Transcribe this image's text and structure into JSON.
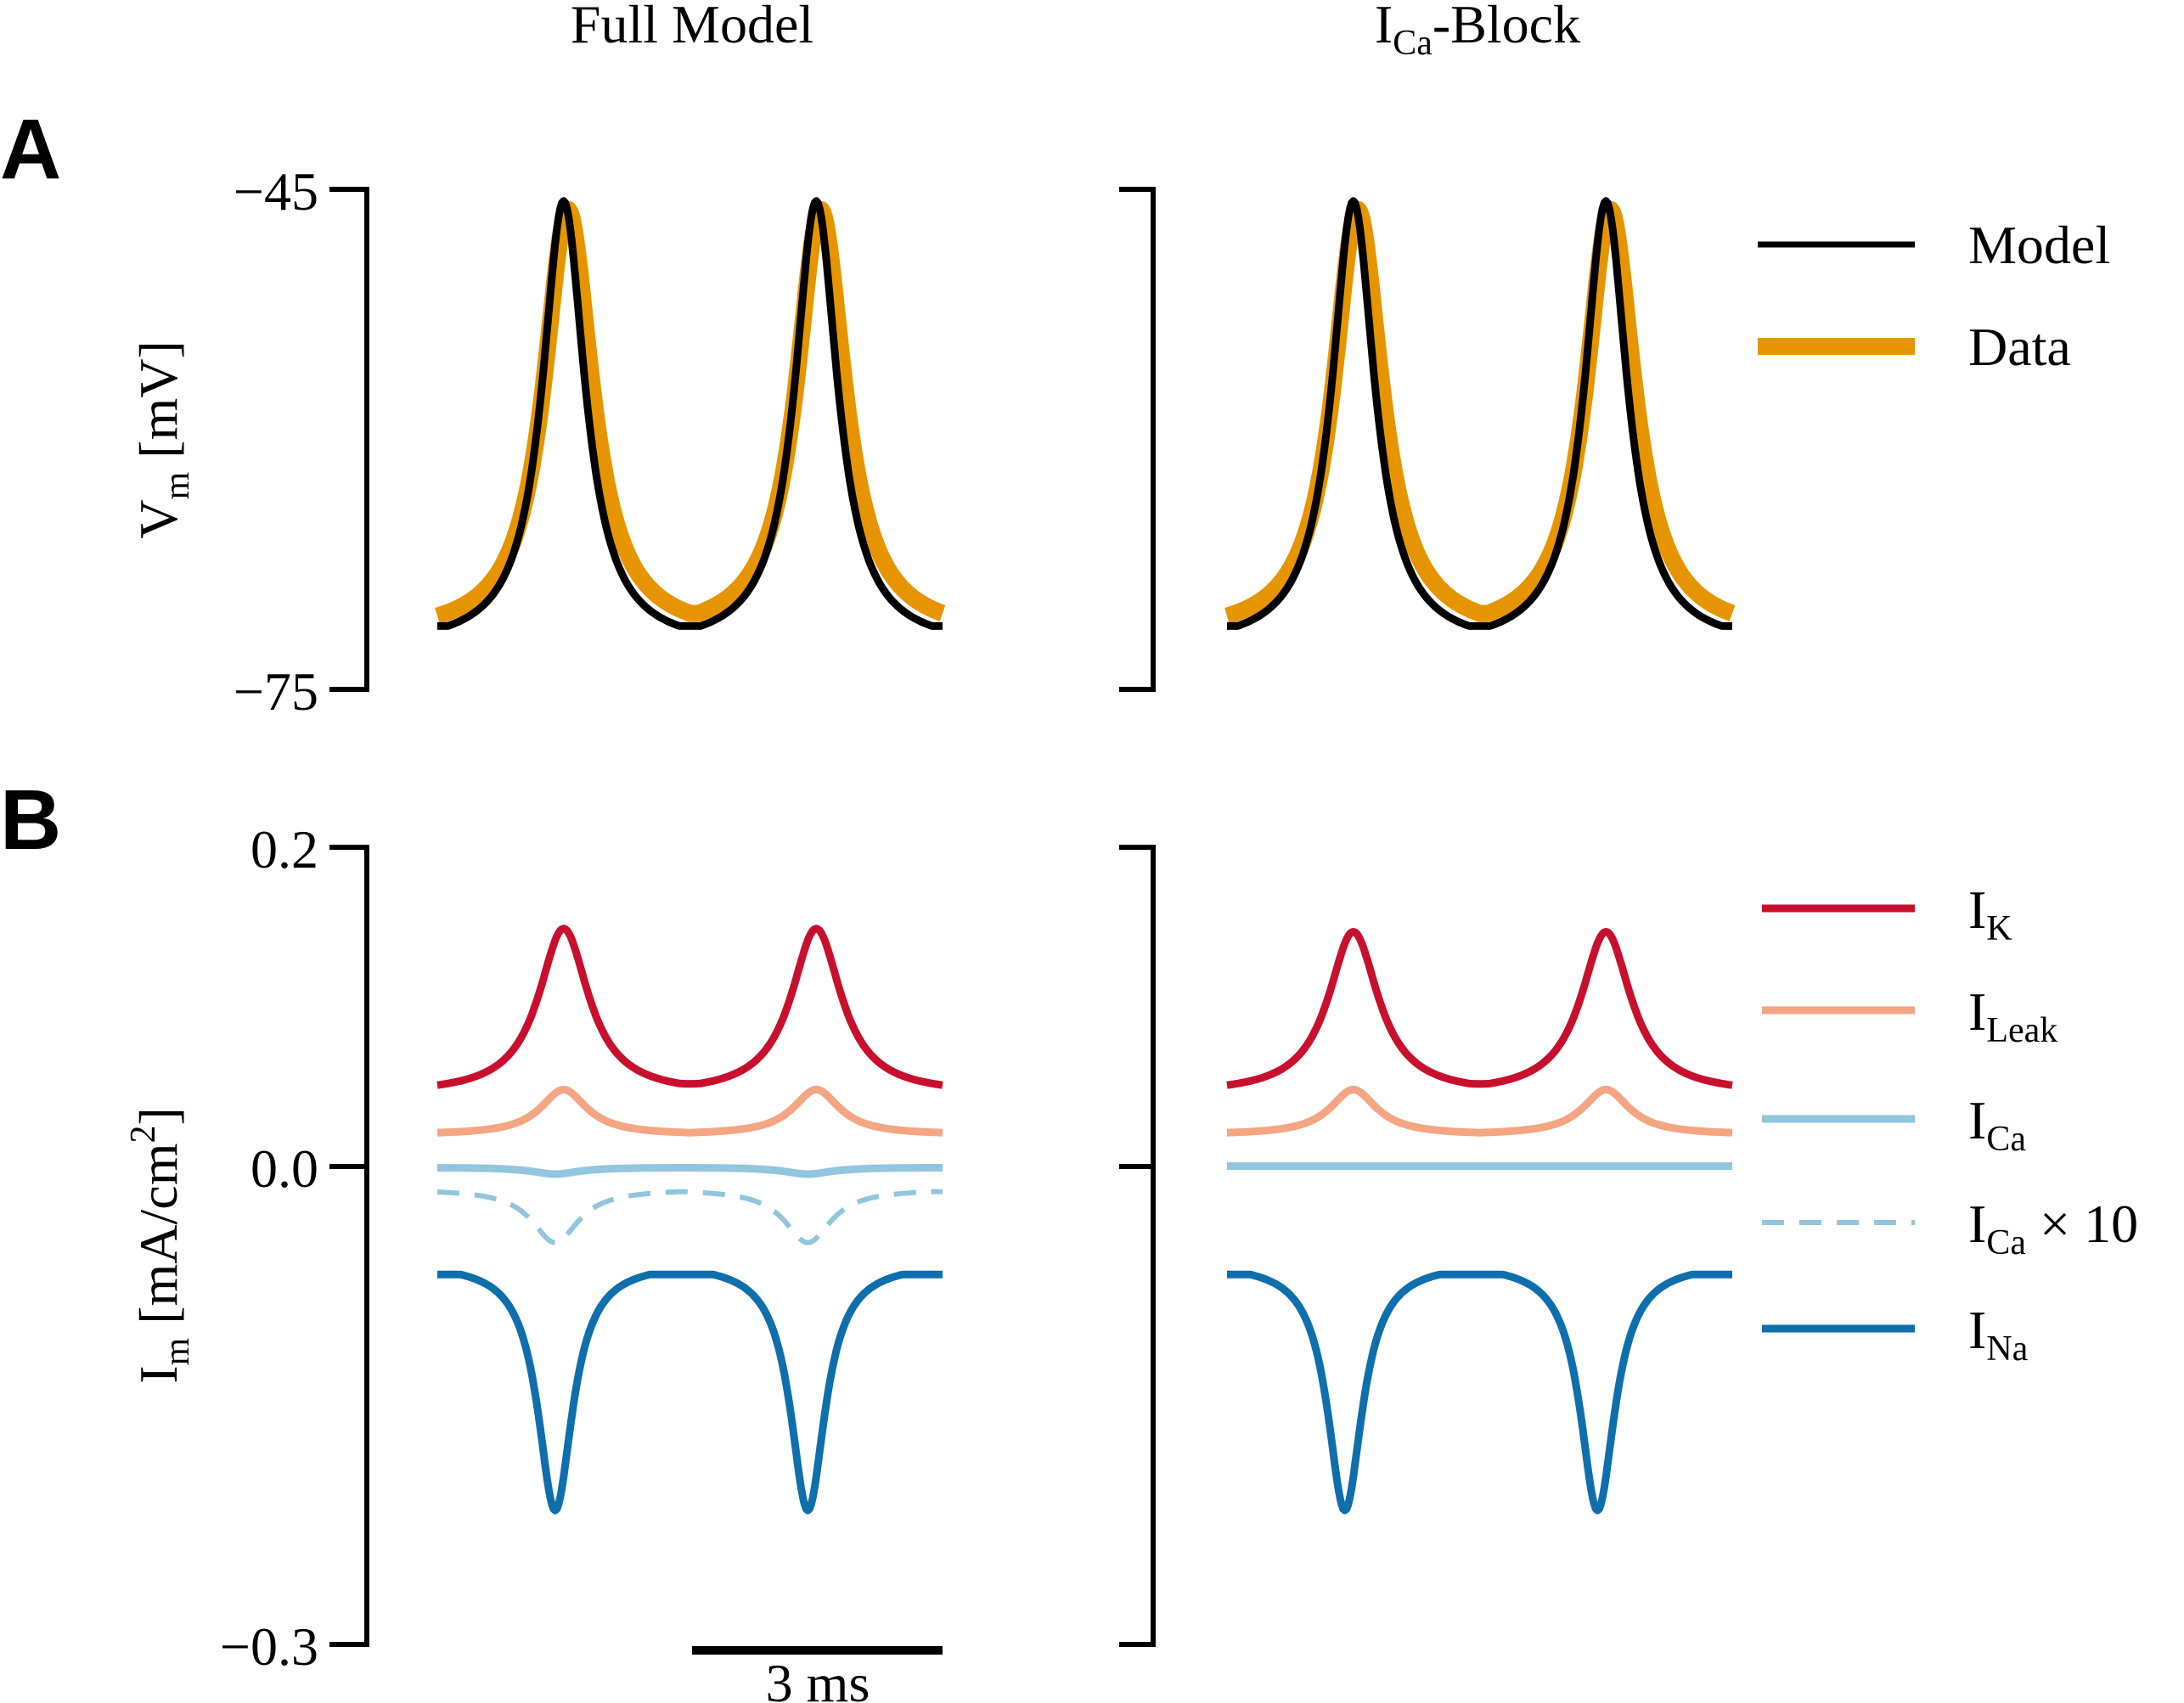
{
  "figure": {
    "columns": [
      "Full Model",
      "Block"
    ],
    "column_titles": {
      "full": "Full Model",
      "block_main": "I",
      "block_sub": "Ca",
      "block_suffix": "-Block"
    },
    "panel_letters": [
      "A",
      "B"
    ],
    "scalebar_label": "3 ms"
  },
  "chart_data": [
    {
      "panel": "A",
      "type": "line",
      "ylabel_main": "V",
      "ylabel_sub": "m",
      "ylabel_suffix": " [mV]",
      "ylim": [
        -75,
        -45
      ],
      "yticks": [
        "−45",
        "−75"
      ],
      "ytick_values": [
        -45,
        -75
      ],
      "x_unit": "ms",
      "xlim": [
        0,
        6
      ],
      "legend": [
        {
          "key": "model",
          "label": "Model"
        },
        {
          "key": "data",
          "label": "Data"
        }
      ],
      "colors": {
        "model": "#000000",
        "data": "#e69500"
      },
      "series": {
        "full": {
          "model": {
            "baseline": -71.2,
            "peak": -45.7,
            "peaks_x": [
              1.5,
              4.5
            ],
            "width": 0.55
          },
          "data": {
            "baseline": -70.6,
            "peak": -46.2,
            "peaks_x": [
              1.55,
              4.55
            ],
            "width": 0.62
          }
        },
        "block": {
          "model": {
            "baseline": -71.2,
            "peak": -45.7,
            "peaks_x": [
              1.5,
              4.5
            ],
            "width": 0.55
          },
          "data": {
            "baseline": -70.6,
            "peak": -46.2,
            "peaks_x": [
              1.55,
              4.55
            ],
            "width": 0.62
          }
        }
      }
    },
    {
      "panel": "B",
      "type": "line",
      "ylabel_main": "I",
      "ylabel_sub": "m",
      "ylabel_suffix": " [mA/cm",
      "ylabel_sup": "2",
      "ylabel_close": "]",
      "ylim": [
        -0.3,
        0.2
      ],
      "yticks": [
        "0.2",
        "0.0",
        "−0.3"
      ],
      "ytick_values": [
        0.2,
        0.0,
        -0.3
      ],
      "x_unit": "ms",
      "xlim": [
        0,
        6
      ],
      "legend": [
        {
          "key": "IK",
          "main": "I",
          "sub": "K",
          "suffix": "",
          "dashed": false
        },
        {
          "key": "ILeak",
          "main": "I",
          "sub": "Leak",
          "suffix": "",
          "dashed": false
        },
        {
          "key": "ICa",
          "main": "I",
          "sub": "Ca",
          "suffix": "",
          "dashed": false
        },
        {
          "key": "ICa10",
          "main": "I",
          "sub": "Ca",
          "suffix": " × 10",
          "dashed": true
        },
        {
          "key": "INa",
          "main": "I",
          "sub": "Na",
          "suffix": "",
          "dashed": false
        }
      ],
      "colors": {
        "IK": "#c8102e",
        "ILeak": "#f4a582",
        "ICa": "#92c5de",
        "ICa10": "#92c5de",
        "INa": "#0f6fad"
      },
      "series": {
        "full": {
          "IK": {
            "baseline": 0.05,
            "peak": 0.149,
            "peaks_x": [
              1.5,
              4.5
            ],
            "width": 0.65
          },
          "ILeak": {
            "baseline": 0.021,
            "peak": 0.048,
            "peaks_x": [
              1.5,
              4.5
            ],
            "width": 0.6
          },
          "ICa": {
            "baseline": -0.001,
            "peak": -0.005,
            "peaks_x": [
              1.4,
              4.4
            ],
            "width": 0.6
          },
          "ICa10": {
            "baseline": -0.016,
            "peak": -0.048,
            "peaks_x": [
              1.4,
              4.4
            ],
            "width": 0.6
          },
          "INa": {
            "baseline": -0.068,
            "peak": -0.216,
            "peaks_x": [
              1.4,
              4.4
            ],
            "width": 0.45
          }
        },
        "block": {
          "IK": {
            "baseline": 0.05,
            "peak": 0.147,
            "peaks_x": [
              1.5,
              4.5
            ],
            "width": 0.65
          },
          "ILeak": {
            "baseline": 0.021,
            "peak": 0.048,
            "peaks_x": [
              1.5,
              4.5
            ],
            "width": 0.6
          },
          "ICa": {
            "baseline": 0.0,
            "peak": 0.0,
            "peaks_x": [
              1.4,
              4.4
            ],
            "width": 0.6
          },
          "INa": {
            "baseline": -0.068,
            "peak": -0.216,
            "peaks_x": [
              1.4,
              4.4
            ],
            "width": 0.45
          }
        }
      }
    }
  ]
}
